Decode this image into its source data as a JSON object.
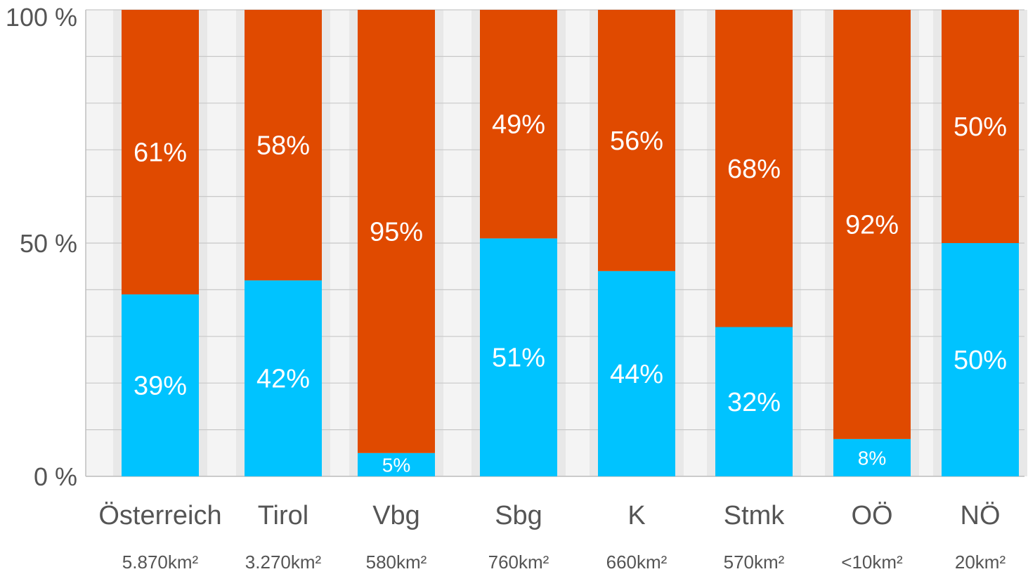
{
  "chart_data": {
    "type": "bar",
    "stacked": true,
    "percent_stacked": true,
    "categories": [
      "Österreich",
      "Tirol",
      "Vbg",
      "Sbg",
      "K",
      "Stmk",
      "OÖ",
      "NÖ"
    ],
    "category_subtitles": [
      "5.870km²",
      "3.270km²",
      "580km²",
      "760km²",
      "660km²",
      "570km²",
      "<10km²",
      "20km²"
    ],
    "series": [
      {
        "values": [
          39,
          42,
          5,
          51,
          44,
          32,
          8,
          50
        ],
        "labels": [
          "39%",
          "42%",
          "5%",
          "51%",
          "44%",
          "32%",
          "8%",
          "50%"
        ]
      },
      {
        "values": [
          61,
          58,
          95,
          49,
          56,
          68,
          92,
          50
        ],
        "labels": [
          "61%",
          "58%",
          "95%",
          "49%",
          "56%",
          "68%",
          "92%",
          "50%"
        ]
      }
    ],
    "yticks": [
      0,
      50,
      100
    ],
    "ytick_labels": [
      "0 %",
      "50 %",
      "100 %"
    ],
    "ylim": [
      0,
      100
    ],
    "grid": true,
    "colors": {
      "background_stripe_a": "#e8e8e8",
      "background_stripe_b": "#f4f4f4",
      "series_bottom": "#00c3ff",
      "series_top": "#e04a00",
      "gridline": "#c8c8c8"
    }
  }
}
